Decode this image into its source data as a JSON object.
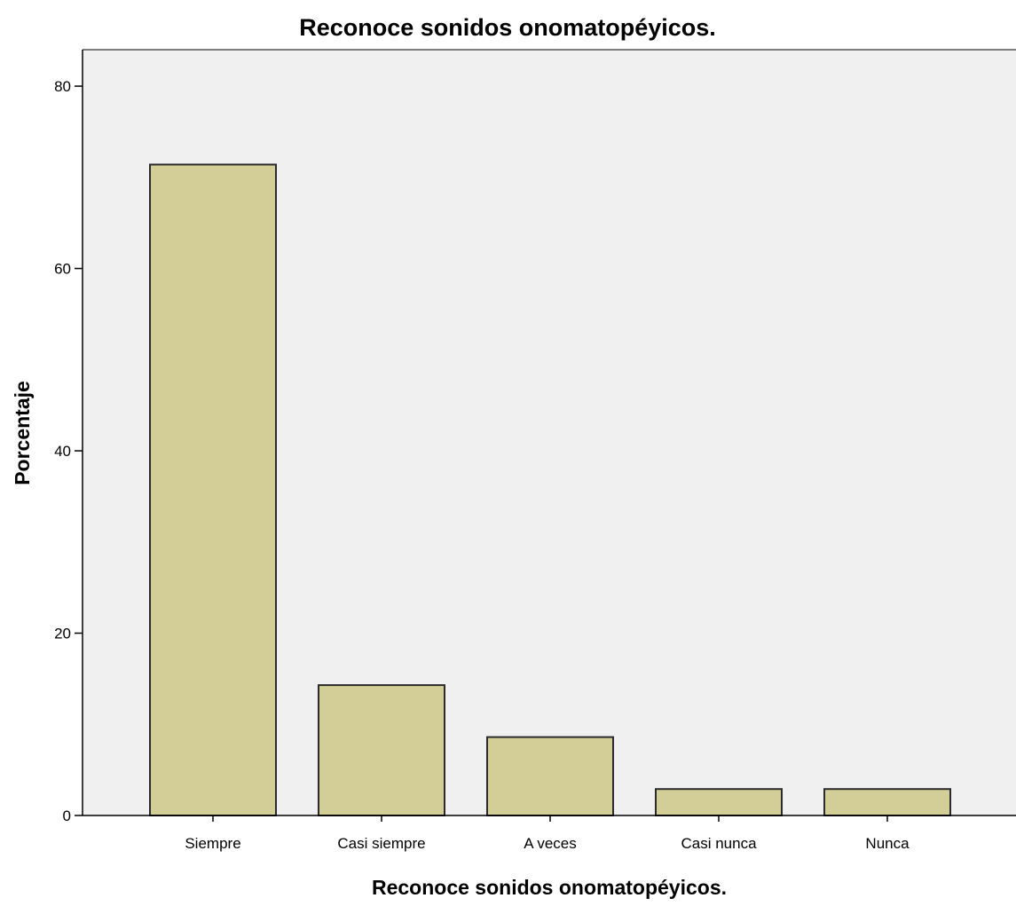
{
  "chart_data": {
    "type": "bar",
    "title": "Reconoce sonidos onomatopéyicos.",
    "xlabel": "Reconoce sonidos onomatopéyicos.",
    "ylabel": "Porcentaje",
    "categories": [
      "Siempre",
      "Casi siempre",
      "A veces",
      "Casi nunca",
      "Nunca"
    ],
    "values": [
      71.4,
      14.3,
      8.6,
      2.9,
      2.9
    ],
    "ylim": [
      0,
      84
    ],
    "yticks": [
      0,
      20,
      40,
      60,
      80
    ],
    "grid": false,
    "legend": "none",
    "colors": {
      "bar_fill": "#d3ce97",
      "bar_stroke": "#2b2b2b",
      "plot_background": "#f0f0f0",
      "axis": "#000000"
    }
  }
}
